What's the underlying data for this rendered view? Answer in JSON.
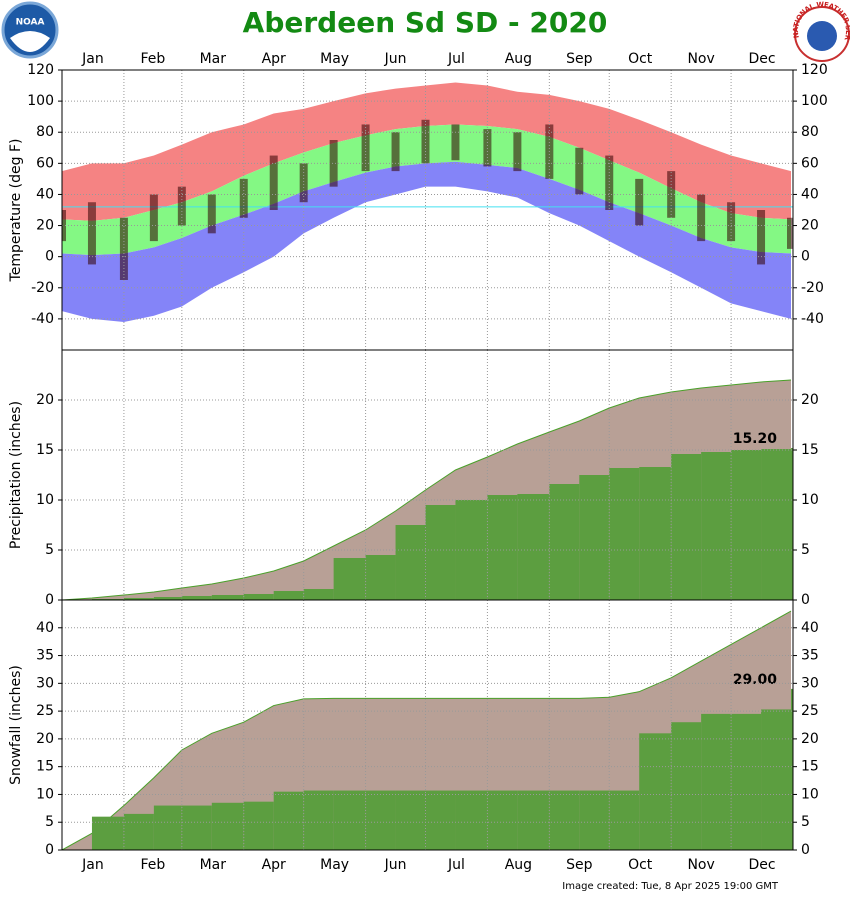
{
  "title": "Aberdeen Sd SD - 2020",
  "footer": "Image created: Tue, 8 Apr 2025 19:00 GMT",
  "logos": {
    "noaa": "NOAA",
    "nws": "NATIONAL WEATHER SERVICE"
  },
  "chart_data": [
    {
      "type": "band",
      "ylabel": "Temperature (deg F)",
      "x": [
        1,
        16,
        32,
        47,
        61,
        76,
        92,
        107,
        122,
        137,
        153,
        168,
        183,
        198,
        214,
        229,
        245,
        260,
        275,
        290,
        306,
        321,
        336,
        351,
        366
      ],
      "xlim": [
        1,
        367
      ],
      "xticks": [
        {
          "value": 1,
          "label": "Jan"
        },
        {
          "value": 32,
          "label": "Feb"
        },
        {
          "value": 61,
          "label": "Mar"
        },
        {
          "value": 92,
          "label": "Apr"
        },
        {
          "value": 122,
          "label": "May"
        },
        {
          "value": 153,
          "label": "Jun"
        },
        {
          "value": 183,
          "label": "Jul"
        },
        {
          "value": 214,
          "label": "Aug"
        },
        {
          "value": 245,
          "label": "Sep"
        },
        {
          "value": 275,
          "label": "Oct"
        },
        {
          "value": 306,
          "label": "Nov"
        },
        {
          "value": 336,
          "label": "Dec"
        }
      ],
      "ylim": [
        -60,
        120
      ],
      "yticks": [
        -40,
        -20,
        0,
        20,
        40,
        60,
        80,
        100,
        120
      ],
      "grid": true,
      "reference_line": 32,
      "record_high": [
        55,
        60,
        60,
        65,
        72,
        80,
        85,
        92,
        95,
        100,
        105,
        108,
        110,
        112,
        110,
        106,
        104,
        100,
        95,
        88,
        80,
        72,
        65,
        60,
        55
      ],
      "normal_high": [
        24,
        23,
        25,
        30,
        35,
        42,
        52,
        60,
        67,
        73,
        78,
        82,
        84,
        85,
        84,
        82,
        77,
        70,
        62,
        54,
        44,
        35,
        28,
        25,
        24
      ],
      "normal_low": [
        2,
        1,
        2,
        6,
        12,
        20,
        27,
        34,
        42,
        48,
        54,
        58,
        60,
        61,
        59,
        57,
        50,
        43,
        35,
        28,
        20,
        12,
        6,
        3,
        2
      ],
      "record_low": [
        -35,
        -40,
        -42,
        -38,
        -32,
        -20,
        -10,
        0,
        15,
        25,
        35,
        40,
        45,
        45,
        42,
        38,
        28,
        20,
        10,
        0,
        -10,
        -20,
        -30,
        -35,
        -40
      ],
      "observed_high": [
        30,
        35,
        25,
        40,
        45,
        40,
        50,
        65,
        60,
        75,
        85,
        80,
        88,
        85,
        82,
        80,
        85,
        70,
        65,
        50,
        55,
        40,
        35,
        30,
        25
      ],
      "observed_low": [
        10,
        -5,
        -15,
        10,
        20,
        15,
        25,
        30,
        35,
        45,
        55,
        55,
        60,
        62,
        58,
        55,
        50,
        40,
        30,
        20,
        25,
        10,
        10,
        -5,
        5
      ],
      "colors": {
        "record_high": "#f58383",
        "normal": "#84f884",
        "record_low": "#8484f8",
        "observed": "rgba(50,0,0,0.55)",
        "reference_line": "#44e0f0"
      }
    },
    {
      "type": "cumulative",
      "ylabel": "Precipitation (inches)",
      "x": [
        1,
        16,
        32,
        47,
        61,
        76,
        92,
        107,
        122,
        137,
        153,
        168,
        183,
        198,
        214,
        229,
        245,
        260,
        275,
        290,
        306,
        321,
        336,
        351,
        366
      ],
      "xlim": [
        1,
        367
      ],
      "xticks": [
        {
          "value": 1,
          "label": "Jan"
        },
        {
          "value": 32,
          "label": "Feb"
        },
        {
          "value": 61,
          "label": "Mar"
        },
        {
          "value": 92,
          "label": "Apr"
        },
        {
          "value": 122,
          "label": "May"
        },
        {
          "value": 153,
          "label": "Jun"
        },
        {
          "value": 183,
          "label": "Jul"
        },
        {
          "value": 214,
          "label": "Aug"
        },
        {
          "value": 245,
          "label": "Sep"
        },
        {
          "value": 275,
          "label": "Oct"
        },
        {
          "value": 306,
          "label": "Nov"
        },
        {
          "value": 336,
          "label": "Dec"
        }
      ],
      "ylim": [
        0,
        25
      ],
      "yticks": [
        0,
        5,
        10,
        15,
        20
      ],
      "grid": true,
      "normal": [
        0,
        0.2,
        0.5,
        0.8,
        1.2,
        1.6,
        2.2,
        2.9,
        3.9,
        5.4,
        7.0,
        8.9,
        11.0,
        13.0,
        14.3,
        15.6,
        16.8,
        17.9,
        19.2,
        20.2,
        20.8,
        21.2,
        21.5,
        21.8,
        22.0
      ],
      "observed": [
        0,
        0.1,
        0.2,
        0.3,
        0.4,
        0.5,
        0.6,
        0.9,
        1.1,
        4.2,
        4.5,
        7.5,
        9.5,
        10.0,
        10.5,
        10.6,
        11.6,
        12.5,
        13.2,
        13.3,
        14.6,
        14.8,
        15.0,
        15.1,
        15.2
      ],
      "value_labels": [
        null,
        null,
        null,
        null,
        null,
        null,
        null,
        null,
        null,
        null,
        null,
        null,
        null,
        null,
        null,
        null,
        null,
        null,
        null,
        null,
        null,
        null,
        null,
        null,
        "15.20"
      ],
      "colors": {
        "normal": "#b8a096",
        "normal_line": "#4aa02a",
        "observed": "#5c9e40"
      }
    },
    {
      "type": "cumulative",
      "ylabel": "Snowfall (inches)",
      "x": [
        1,
        16,
        32,
        47,
        61,
        76,
        92,
        107,
        122,
        137,
        153,
        168,
        183,
        198,
        214,
        229,
        245,
        260,
        275,
        290,
        306,
        321,
        336,
        351,
        366
      ],
      "xlim": [
        1,
        367
      ],
      "xticks": [
        {
          "value": 1,
          "label": "Jan"
        },
        {
          "value": 32,
          "label": "Feb"
        },
        {
          "value": 61,
          "label": "Mar"
        },
        {
          "value": 92,
          "label": "Apr"
        },
        {
          "value": 122,
          "label": "May"
        },
        {
          "value": 153,
          "label": "Jun"
        },
        {
          "value": 183,
          "label": "Jul"
        },
        {
          "value": 214,
          "label": "Aug"
        },
        {
          "value": 245,
          "label": "Sep"
        },
        {
          "value": 275,
          "label": "Oct"
        },
        {
          "value": 306,
          "label": "Nov"
        },
        {
          "value": 336,
          "label": "Dec"
        }
      ],
      "ylim": [
        0,
        45
      ],
      "yticks": [
        0,
        5,
        10,
        15,
        20,
        25,
        30,
        35,
        40
      ],
      "grid": true,
      "normal": [
        0,
        3,
        8,
        13,
        18,
        21,
        23,
        26,
        27.2,
        27.3,
        27.3,
        27.3,
        27.3,
        27.3,
        27.3,
        27.3,
        27.3,
        27.3,
        27.5,
        28.5,
        31,
        34,
        37,
        40,
        43
      ],
      "observed": [
        0,
        6,
        6.5,
        8,
        8,
        8.5,
        8.7,
        10.5,
        10.7,
        10.7,
        10.7,
        10.7,
        10.7,
        10.7,
        10.7,
        10.7,
        10.7,
        10.7,
        10.7,
        21,
        23,
        24.5,
        24.5,
        25.3,
        29
      ],
      "value_labels": [
        null,
        null,
        null,
        null,
        null,
        null,
        null,
        null,
        null,
        null,
        null,
        null,
        null,
        null,
        null,
        null,
        null,
        null,
        null,
        null,
        null,
        null,
        null,
        null,
        "29.00"
      ],
      "colors": {
        "normal": "#b8a096",
        "normal_line": "#4aa02a",
        "observed": "#5c9e40"
      }
    }
  ]
}
